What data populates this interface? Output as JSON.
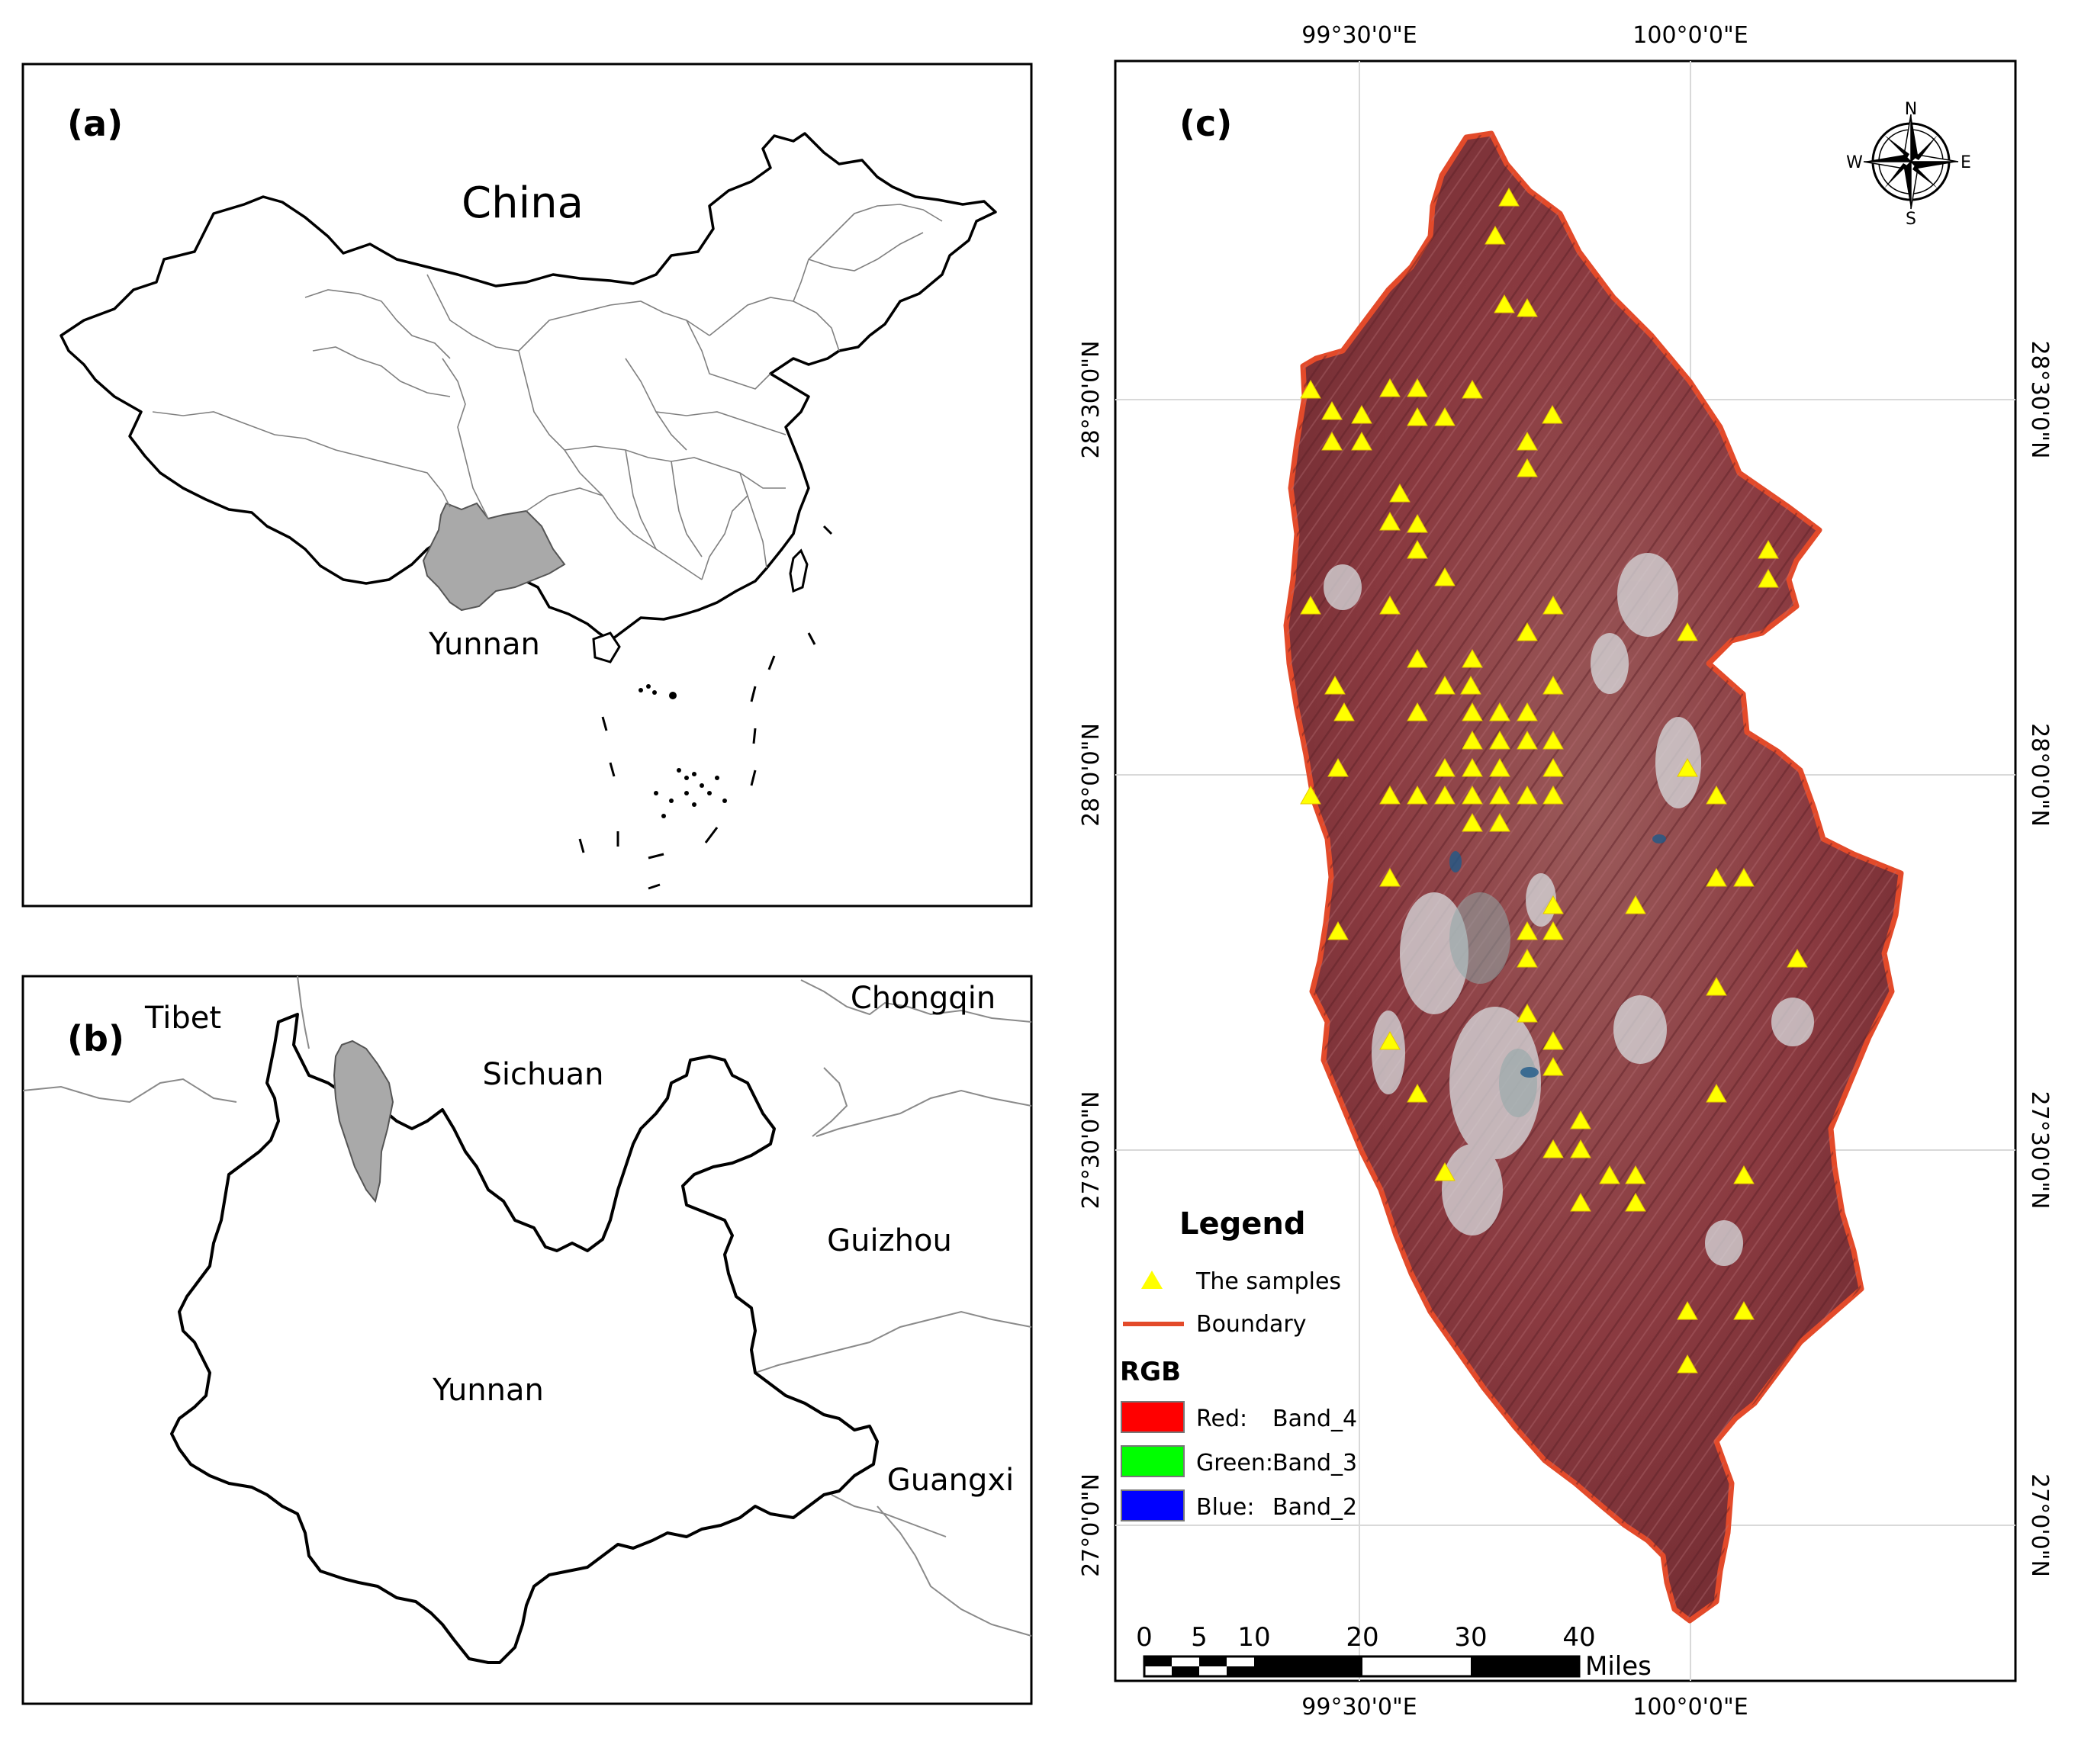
{
  "panel_a": {
    "label": "(a)",
    "country": "China",
    "province": "Yunnan"
  },
  "panel_b": {
    "label": "(b)",
    "regions": {
      "tibet": "Tibet",
      "sichuan": "Sichuan",
      "chongqin": "Chongqin",
      "guizhou": "Guizhou",
      "yunnan": "Yunnan",
      "guangxi": "Guangxi"
    }
  },
  "panel_c": {
    "label": "(c)",
    "lon_ticks": [
      "99°30'0\"E",
      "100°0'0\"E"
    ],
    "lat_ticks": [
      "28°30'0\"N",
      "28°0'0\"N",
      "27°30'0\"N",
      "27°0'0\"N"
    ],
    "compass": {
      "n": "N",
      "s": "S",
      "e": "E",
      "w": "W"
    },
    "legend": {
      "title": "Legend",
      "samples": "The samples",
      "boundary": "Boundary",
      "rgb_title": "RGB",
      "red_label": "Red:",
      "red_band": "Band_4",
      "green_label": "Green:",
      "green_band": "Band_3",
      "blue_label": "Blue:",
      "blue_band": "Band_2"
    },
    "scale": {
      "ticks": [
        "0",
        "5",
        "10",
        "20",
        "30",
        "40"
      ],
      "unit": "Miles"
    },
    "colors": {
      "sample": "#ffff00",
      "boundary": "#e34a2a",
      "terrain": "#8c3a3d",
      "red_swatch": "#ff0000",
      "green_swatch": "#00ff00",
      "blue_swatch": "#0000ff"
    }
  }
}
